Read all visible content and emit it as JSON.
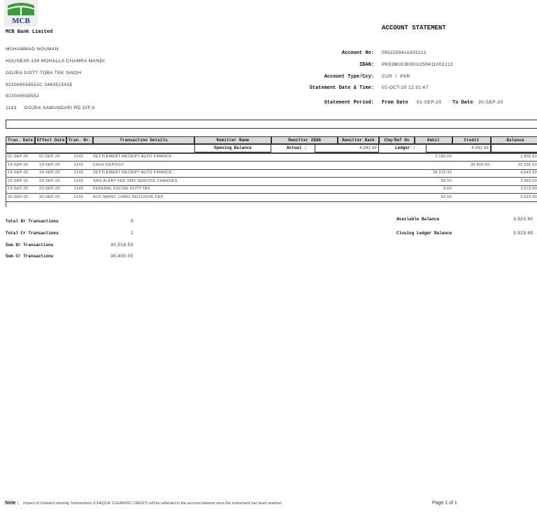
{
  "bank": {
    "logo_text": "MCB",
    "name": "MCB Bank Limited",
    "brand_green": "#3a9a3a",
    "brand_blue": "#1a3c8c"
  },
  "title": "ACCOUNT STATEMENT",
  "customer": [
    "MUHAMMAD NOUMAN",
    "HOUSE#P-199 MOHALLA CHAMRA MANDI",
    "GOJRA DISTT TOBA TEK SINGH",
    "923006558552C 0463515435",
    "923006558552",
    "1143     GOJRA SAMUNDARI RD D/F.A"
  ],
  "account": {
    "no_label": "Account No:",
    "no": "0502259411002212",
    "iban_label": "IBAN:",
    "iban": "PK93MUCB0502259411002212",
    "type_label": "Account Type/Ccy:",
    "type": "CUR  /  PKR",
    "date_label": "Statement Date & Time:",
    "date": "02-OCT-20 12:31:47",
    "period_label": "Statement Period:",
    "from_label": "From Date",
    "from": "01-SEP-20",
    "to_label": "To Date",
    "to": "30-SEP-20"
  },
  "table": {
    "headers": [
      "Tran. Date",
      "Effect Date",
      "Tran. Br.",
      "Transaction Details",
      "Remitter Name",
      "Remitter IBAN",
      "Remitter Bank",
      "Chq/Ref No",
      "Debit",
      "Credit",
      "Balance"
    ],
    "opening_label": "Opening Balance",
    "actual_label": "Actual :",
    "actual": "4,042.43",
    "ledger_label": "Ledger :",
    "ledger": "4,042.43",
    "rows": [
      {
        "tran_date": "01-SEP-20",
        "effect_date": "01-SEP-20",
        "br": "1143",
        "details": "SETTLEMENT RECEIPT AUTO FINANCE -",
        "debit": "2,186.50",
        "credit": "",
        "balance": "1,855.93"
      },
      {
        "tran_date": "14-SEP-20",
        "effect_date": "14-SEP-20",
        "br": "1143",
        "details": "CASH DEPOSIT",
        "debit": "",
        "credit": "30,400.00",
        "balance": "32,255.93"
      },
      {
        "tran_date": "14-SEP-20",
        "effect_date": "14-SEP-20",
        "br": "1143",
        "details": "SETTLEMENT RECEIPT AUTO FINANCE -",
        "debit": "28,212.43",
        "credit": "",
        "balance": "4,043.50"
      },
      {
        "tran_date": "23-SEP-20",
        "effect_date": "23-SEP-20",
        "br": "1143",
        "details": "SMS ALERT FEE SMS SERVICE CHARGES",
        "debit": "60.00",
        "credit": "",
        "balance": "3,983.50"
      },
      {
        "tran_date": "23-SEP-20",
        "effect_date": "23-SEP-20",
        "br": "1143",
        "details": "FEDERAL EXCISE DUTY TAX",
        "debit": "9.60",
        "credit": "",
        "balance": "3,973.90"
      },
      {
        "tran_date": "30-SEP-20",
        "effect_date": "30-SEP-20",
        "br": "1143",
        "details": "ACC MAINT. CHRG INCLUSIVE FED",
        "debit": "50.00",
        "credit": "",
        "balance": "3,923.90"
      }
    ]
  },
  "summary": {
    "total_dr_label": "Total Dr Transactions",
    "total_dr": "5",
    "total_cr_label": "Total Cr Transactions",
    "total_cr": "1",
    "sum_dr_label": "Sum Dr Transactions",
    "sum_dr": "30,518.53",
    "sum_cr_label": "Sum Cr Transactions",
    "sum_cr": "30,400.00",
    "avail_label": "Available Balance",
    "avail": "3,923.90",
    "closing_label": "Closing Ledger Balance",
    "closing": "3,923.90"
  },
  "footer": {
    "note_label": "Note :",
    "note": "Impact of Outward clearing Transactions (CHEQUE CLEARING CREDIT) will be reflected in the account balance once the instrument has been realized",
    "page": "Page 1 of 1"
  }
}
